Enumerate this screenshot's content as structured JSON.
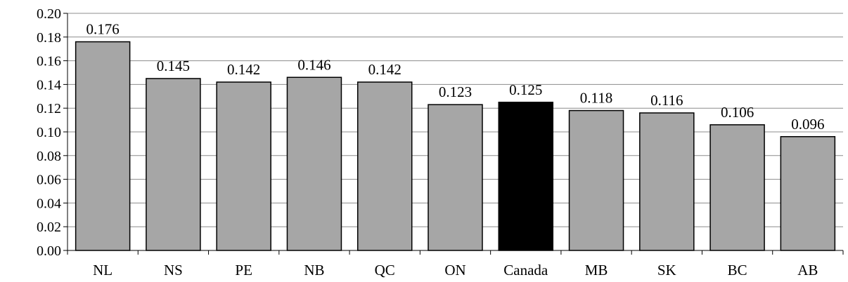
{
  "chart_data": {
    "type": "bar",
    "categories": [
      "NL",
      "NS",
      "PE",
      "NB",
      "QC",
      "ON",
      "Canada",
      "MB",
      "SK",
      "BC",
      "AB"
    ],
    "values": [
      0.176,
      0.145,
      0.142,
      0.146,
      0.142,
      0.123,
      0.125,
      0.118,
      0.116,
      0.106,
      0.096
    ],
    "data_labels": [
      "0.176",
      "0.145",
      "0.142",
      "0.146",
      "0.142",
      "0.123",
      "0.125",
      "0.118",
      "0.116",
      "0.106",
      "0.096"
    ],
    "y_ticks": [
      "0.00",
      "0.02",
      "0.04",
      "0.06",
      "0.08",
      "0.10",
      "0.12",
      "0.14",
      "0.16",
      "0.18",
      "0.20"
    ],
    "ylim": [
      0,
      0.2
    ],
    "grid": true,
    "legend": "none",
    "title": "",
    "xlabel": "",
    "ylabel": "",
    "colors": {
      "bar": "#a6a6a6",
      "highlight_bar": "#000000",
      "highlight_category": "Canada",
      "grid": "#8c8c8c"
    }
  }
}
